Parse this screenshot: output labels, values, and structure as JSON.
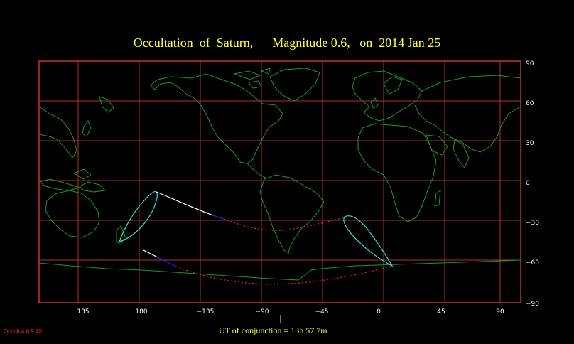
{
  "title": "Occultation  of  Saturn,      Magnitude 0.6,   on  2014 Jan 25",
  "conjunction_label": "UT of conjunction = 13h 57.7m",
  "version_label": "Occult 4.0.9.40",
  "colors": {
    "frame": "#c83232",
    "grid": "#b03030",
    "coast": "#1a9a1a",
    "title": "#ffff33",
    "limit_cyan": "#33dddd",
    "path_white": "#ffffff",
    "path_blue": "#2020ff",
    "path_dotted": "#ff2222"
  },
  "map": {
    "projection": "equirectangular",
    "lon_range": [
      109,
      112
    ],
    "lat_range": [
      -90,
      90
    ],
    "lon_ticks": [
      "135",
      "180",
      "−135",
      "−90",
      "−45",
      "0",
      "45",
      "90"
    ],
    "lat_ticks": [
      "90",
      "60",
      "30",
      "0",
      "−30",
      "−60",
      "−90"
    ]
  }
}
